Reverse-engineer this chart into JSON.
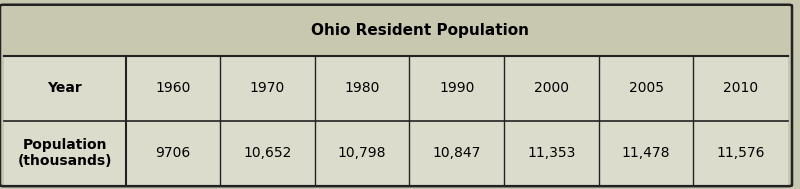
{
  "title": "Ohio Resident Population",
  "years": [
    "1960",
    "1970",
    "1980",
    "1990",
    "2000",
    "2005",
    "2010"
  ],
  "populations": [
    "9706",
    "10,652",
    "10,798",
    "10,847",
    "11,353",
    "11,478",
    "11,576"
  ],
  "row1_label": "Year",
  "row2_label1": "Population\n(thousands)",
  "bg_color": "#c8c8b0",
  "cell_bg": "#dcdccc",
  "title_bg": "#c8c8b0",
  "border_color": "#222222",
  "title_fontsize": 11,
  "cell_fontsize": 10,
  "label_fontsize": 10,
  "fig_width": 8.0,
  "fig_height": 1.89,
  "dpi": 100
}
